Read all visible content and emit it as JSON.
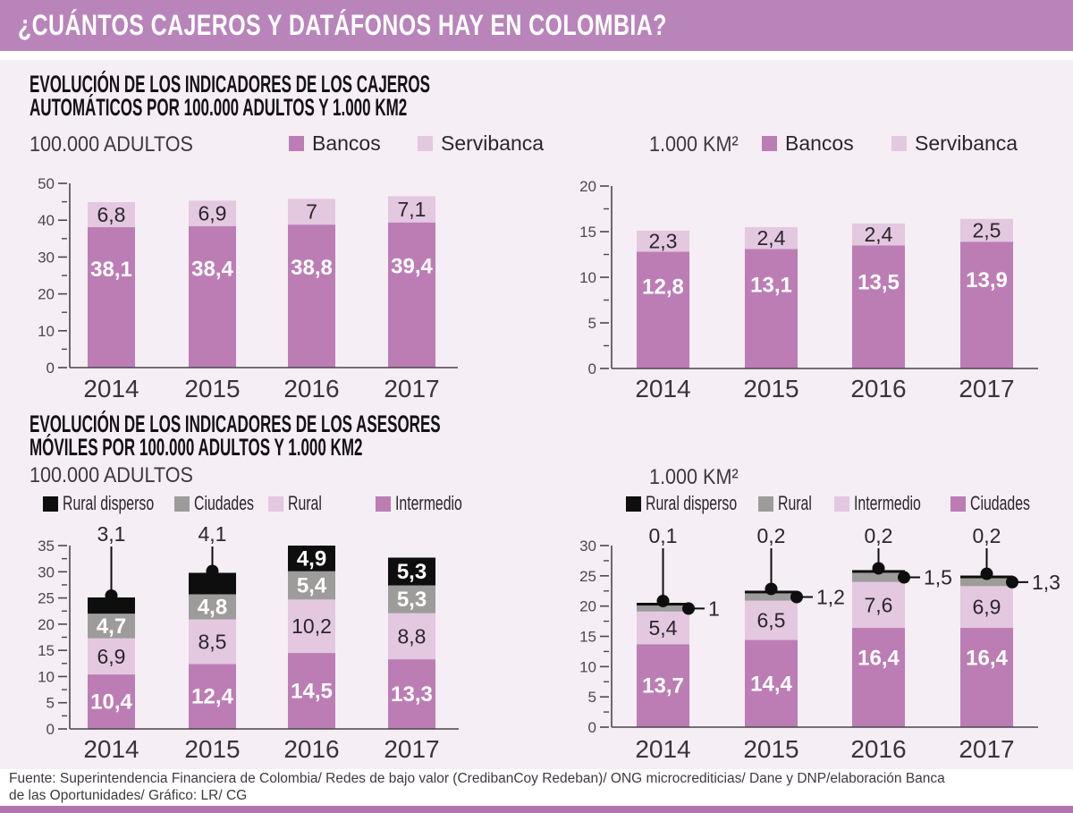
{
  "header": {
    "title": "¿CUÁNTOS CAJEROS Y DATÁFONOS HAY EN COLOMBIA?"
  },
  "colors": {
    "header_bg": "#b884ba",
    "bottom_bar": "#b274ae",
    "panel_bg": "#f5eef5",
    "purple": "#bc7db5",
    "light_pink": "#e3c8e0",
    "gray": "#9d9c9a",
    "black": "#0f0e0f",
    "axis": "#4b474b",
    "tick_text": "#4d474c",
    "year_text": "#3a343a",
    "dark_label": "#2b262b",
    "white": "#ffffff"
  },
  "section1": {
    "title_line1": "EVOLUCIÓN DE LOS INDICADORES DE LOS CAJEROS",
    "title_line2": "AUTOMÁTICOS POR 100.000 ADULTOS Y 1.000 KM2"
  },
  "section2": {
    "title_line1": "EVOLUCIÓN DE LOS INDICADORES DE LOS ASESORES",
    "title_line2": "MÓVILES POR 100.000 ADULTOS Y 1.000 KM2"
  },
  "footer": {
    "line1": "Fuente: Superintendencia Financiera de Colombia/ Redes de bajo valor (CredibanCoy Redeban)/ ONG microcrediticias/ Dane y DNP/elaboración Banca",
    "line2": "de las Oportunidades/ Gráfico: LR/ CG"
  },
  "chart_data": [
    {
      "id": "cajeros_100000_adultos",
      "type": "bar",
      "stacked": true,
      "unit_label": "100.000 ADULTOS",
      "categories": [
        "2014",
        "2015",
        "2016",
        "2017"
      ],
      "ylim": [
        0,
        50
      ],
      "ytick_step": 10,
      "grid": false,
      "legend_position": "top",
      "legend": [
        {
          "label": "Bancos",
          "color": "purple"
        },
        {
          "label": "Servibanca",
          "color": "light_pink"
        }
      ],
      "series": [
        {
          "name": "Bancos",
          "color": "purple",
          "values": [
            38.1,
            38.4,
            38.8,
            39.4
          ],
          "labels": [
            "38,1",
            "38,4",
            "38,8",
            "39,4"
          ],
          "label_style": "white-bold",
          "label_mode": [
            "inside",
            "inside",
            "inside",
            "inside"
          ]
        },
        {
          "name": "Servibanca",
          "color": "light_pink",
          "values": [
            6.8,
            6.9,
            7.0,
            7.1
          ],
          "labels": [
            "6,8",
            "6,9",
            "7",
            "7,1"
          ],
          "label_style": "dark",
          "label_mode": [
            "inside",
            "inside",
            "inside",
            "inside"
          ]
        }
      ]
    },
    {
      "id": "cajeros_1000_km2",
      "type": "bar",
      "stacked": true,
      "unit_label": "1.000 KM²",
      "categories": [
        "2014",
        "2015",
        "2016",
        "2017"
      ],
      "ylim": [
        0,
        20
      ],
      "ytick_step": 5,
      "grid": false,
      "legend_position": "top",
      "legend": [
        {
          "label": "Bancos",
          "color": "purple"
        },
        {
          "label": "Servibanca",
          "color": "light_pink"
        }
      ],
      "series": [
        {
          "name": "Bancos",
          "color": "purple",
          "values": [
            12.8,
            13.1,
            13.5,
            13.9
          ],
          "labels": [
            "12,8",
            "13,1",
            "13,5",
            "13,9"
          ],
          "label_style": "white-bold",
          "label_mode": [
            "inside",
            "inside",
            "inside",
            "inside"
          ]
        },
        {
          "name": "Servibanca",
          "color": "light_pink",
          "values": [
            2.3,
            2.4,
            2.4,
            2.5
          ],
          "labels": [
            "2,3",
            "2,4",
            "2,4",
            "2,5"
          ],
          "label_style": "dark",
          "label_mode": [
            "inside",
            "inside",
            "inside",
            "inside"
          ]
        }
      ]
    },
    {
      "id": "asesores_100000_adultos",
      "type": "bar",
      "stacked": true,
      "unit_label": "100.000 ADULTOS",
      "categories": [
        "2014",
        "2015",
        "2016",
        "2017"
      ],
      "ylim": [
        0,
        35
      ],
      "ytick_step": 5,
      "grid": false,
      "legend_position": "top",
      "legend": [
        {
          "label": "Rural disperso",
          "color": "black"
        },
        {
          "label": "Ciudades",
          "color": "gray"
        },
        {
          "label": "Rural",
          "color": "light_pink"
        },
        {
          "label": "Intermedio",
          "color": "purple"
        }
      ],
      "series": [
        {
          "name": "Intermedio",
          "color": "purple",
          "values": [
            10.4,
            12.4,
            14.5,
            13.3
          ],
          "labels": [
            "10,4",
            "12,4",
            "14,5",
            "13,3"
          ],
          "label_style": "white-bold",
          "label_mode": [
            "inside",
            "inside",
            "inside",
            "inside"
          ]
        },
        {
          "name": "Rural",
          "color": "light_pink",
          "values": [
            6.9,
            8.5,
            10.2,
            8.8
          ],
          "labels": [
            "6,9",
            "8,5",
            "10,2",
            "8,8"
          ],
          "label_style": "dark",
          "label_mode": [
            "inside",
            "inside",
            "inside",
            "inside"
          ]
        },
        {
          "name": "Ciudades",
          "color": "gray",
          "values": [
            4.7,
            4.8,
            5.4,
            5.3
          ],
          "labels": [
            "4,7",
            "4,8",
            "5,4",
            "5,3"
          ],
          "label_style": "white-bold",
          "label_mode": [
            "inside",
            "inside",
            "inside",
            "inside"
          ]
        },
        {
          "name": "Rural disperso",
          "color": "black",
          "values": [
            3.1,
            4.1,
            4.9,
            5.3
          ],
          "labels": [
            "3,1",
            "4,1",
            "4,9",
            "5,3"
          ],
          "label_style": "white-bold",
          "label_mode": [
            "above",
            "above",
            "inside",
            "inside"
          ]
        }
      ]
    },
    {
      "id": "asesores_1000_km2",
      "type": "bar",
      "stacked": true,
      "unit_label": "1.000 KM²",
      "categories": [
        "2014",
        "2015",
        "2016",
        "2017"
      ],
      "ylim": [
        0,
        30
      ],
      "ytick_step": 5,
      "grid": false,
      "legend_position": "top",
      "legend": [
        {
          "label": "Rural disperso",
          "color": "black"
        },
        {
          "label": "Rural",
          "color": "gray"
        },
        {
          "label": "Intermedio",
          "color": "light_pink"
        },
        {
          "label": "Ciudades",
          "color": "purple"
        }
      ],
      "series": [
        {
          "name": "Ciudades",
          "color": "purple",
          "values": [
            13.7,
            14.4,
            16.4,
            16.4
          ],
          "labels": [
            "13,7",
            "14,4",
            "16,4",
            "16,4"
          ],
          "label_style": "white-bold",
          "label_mode": [
            "inside",
            "inside",
            "inside",
            "inside"
          ]
        },
        {
          "name": "Intermedio",
          "color": "light_pink",
          "values": [
            5.4,
            6.5,
            7.6,
            6.9
          ],
          "labels": [
            "5,4",
            "6,5",
            "7,6",
            "6,9"
          ],
          "label_style": "dark",
          "label_mode": [
            "inside",
            "inside",
            "inside",
            "inside"
          ]
        },
        {
          "name": "Rural",
          "color": "gray",
          "values": [
            1.0,
            1.2,
            1.5,
            1.3
          ],
          "labels": [
            "1",
            "1,2",
            "1,5",
            "1,3"
          ],
          "label_style": "dark",
          "label_mode": [
            "right",
            "right",
            "right",
            "right"
          ]
        },
        {
          "name": "Rural disperso",
          "color": "black",
          "values": [
            0.1,
            0.2,
            0.2,
            0.2
          ],
          "labels": [
            "0,1",
            "0,2",
            "0,2",
            "0,2"
          ],
          "label_style": "dark",
          "label_mode": [
            "above",
            "above",
            "above",
            "above"
          ]
        }
      ]
    }
  ]
}
